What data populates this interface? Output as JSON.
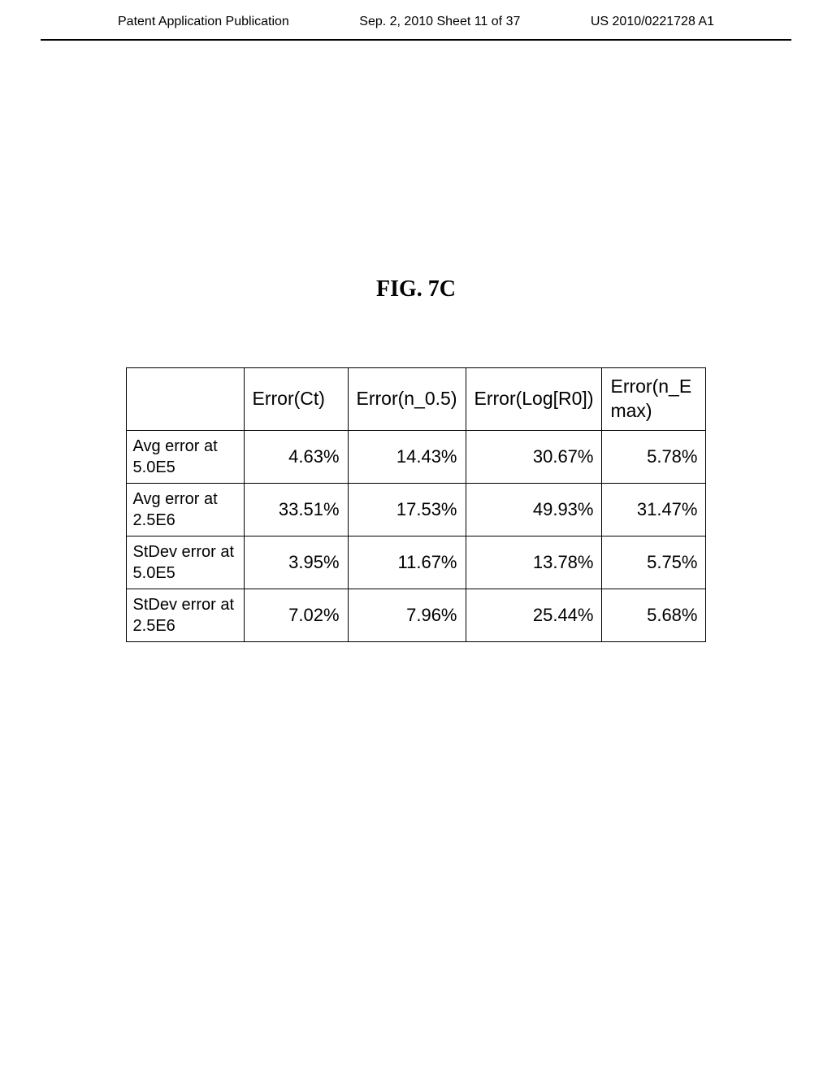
{
  "header": {
    "left": "Patent Application Publication",
    "center": "Sep. 2, 2010  Sheet 11 of 37",
    "right": "US 2010/0221728 A1"
  },
  "figure_title": "FIG.  7C",
  "table": {
    "type": "table",
    "background_color": "#ffffff",
    "border_color": "#000000",
    "columns": [
      "",
      "Error(Ct)",
      "Error(n_0.5)",
      "Error(Log[R0])",
      "Error(n_E max)"
    ],
    "rows": [
      {
        "label": "Avg error at 5.0E5",
        "values": [
          "4.63%",
          "14.43%",
          "30.67%",
          "5.78%"
        ]
      },
      {
        "label": "Avg error at 2.5E6",
        "values": [
          "33.51%",
          "17.53%",
          "49.93%",
          "31.47%"
        ]
      },
      {
        "label": "StDev error at 5.0E5",
        "values": [
          "3.95%",
          "11.67%",
          "13.78%",
          "5.75%"
        ]
      },
      {
        "label": "StDev error at 2.5E6",
        "values": [
          "7.02%",
          "7.96%",
          "25.44%",
          "5.68%"
        ]
      }
    ]
  }
}
